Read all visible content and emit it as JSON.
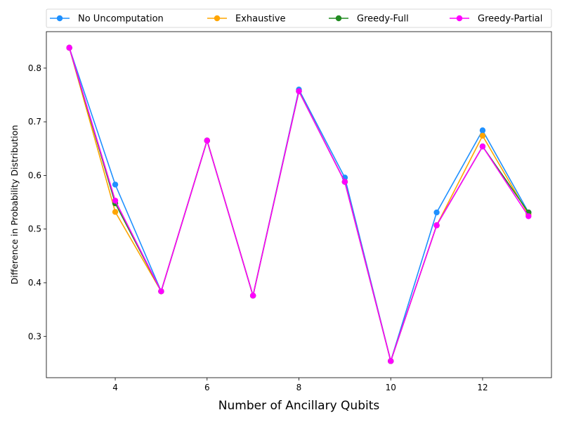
{
  "chart_data": {
    "type": "line",
    "title": "",
    "xlabel": "Number of Ancillary Qubits",
    "ylabel": "Difference in Probability Distribution",
    "x": [
      3,
      4,
      5,
      6,
      7,
      8,
      9,
      10,
      11,
      12,
      13
    ],
    "xlim": [
      2.5,
      13.5
    ],
    "ylim": [
      0.223,
      0.868
    ],
    "xticks": [
      4,
      6,
      8,
      10,
      12
    ],
    "yticks": [
      0.3,
      0.4,
      0.5,
      0.6,
      0.7,
      0.8
    ],
    "xtick_labels": [
      "4",
      "6",
      "8",
      "10",
      "12"
    ],
    "ytick_labels": [
      "0.3",
      "0.4",
      "0.5",
      "0.6",
      "0.7",
      "0.8"
    ],
    "grid": false,
    "legend_position": "top, above plot, 4 columns",
    "series": [
      {
        "name": "No Uncomputation",
        "color": "#1e90ff",
        "values": [
          0.838,
          0.583,
          0.384,
          0.665,
          0.376,
          0.76,
          0.596,
          0.254,
          0.531,
          0.684,
          0.531
        ]
      },
      {
        "name": "Exhaustive",
        "color": "#ffa500",
        "values": [
          0.838,
          0.532,
          0.384,
          0.665,
          0.376,
          0.757,
          0.588,
          0.254,
          0.507,
          0.674,
          0.527
        ]
      },
      {
        "name": "Greedy-Full",
        "color": "#228b22",
        "values": [
          0.838,
          0.548,
          0.384,
          0.665,
          0.376,
          0.757,
          0.588,
          0.254,
          0.507,
          0.654,
          0.531
        ]
      },
      {
        "name": "Greedy-Partial",
        "color": "#ff00ff",
        "values": [
          0.838,
          0.553,
          0.384,
          0.665,
          0.376,
          0.757,
          0.588,
          0.254,
          0.507,
          0.654,
          0.524
        ]
      }
    ]
  }
}
